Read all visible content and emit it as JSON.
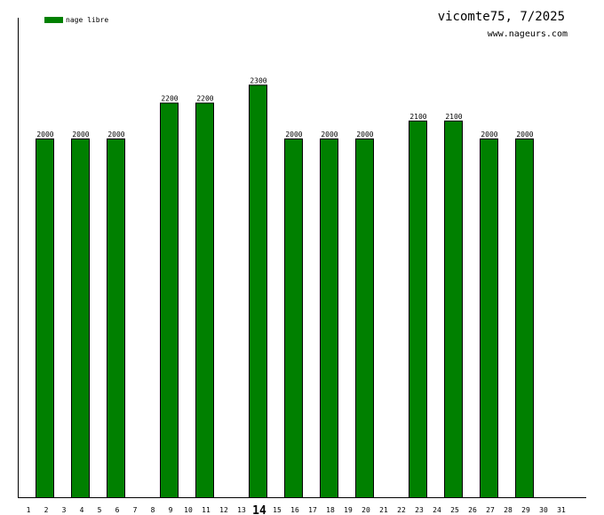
{
  "chart_data": {
    "type": "bar",
    "title": "vicomte75, 7/2025",
    "subtitle": "www.nageurs.com",
    "legend": [
      {
        "label": "nage libre",
        "color": "#008000"
      }
    ],
    "legend_placement": "top-left",
    "xlabel": "",
    "ylabel": "",
    "categories": [
      "1",
      "2",
      "3",
      "4",
      "5",
      "6",
      "7",
      "8",
      "9",
      "10",
      "11",
      "12",
      "13",
      "14",
      "15",
      "16",
      "17",
      "18",
      "19",
      "20",
      "21",
      "22",
      "23",
      "24",
      "25",
      "26",
      "27",
      "28",
      "29",
      "30",
      "31"
    ],
    "highlighted_category": "14",
    "series": [
      {
        "name": "nage libre",
        "values": [
          null,
          2000,
          null,
          2000,
          null,
          2000,
          null,
          null,
          2200,
          null,
          2200,
          null,
          null,
          2300,
          null,
          2000,
          null,
          2000,
          null,
          2000,
          null,
          null,
          2100,
          null,
          2100,
          null,
          2000,
          null,
          2000,
          null,
          null
        ]
      }
    ],
    "ylim": [
      0,
      2673
    ],
    "grid": false
  }
}
